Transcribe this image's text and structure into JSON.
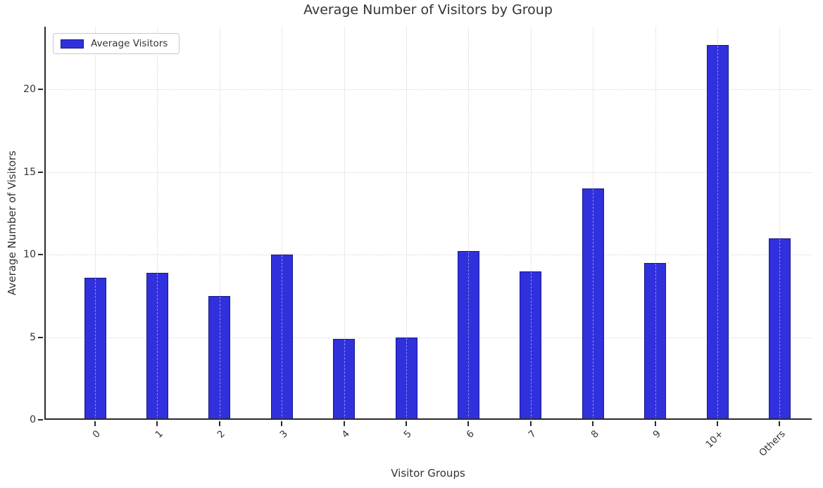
{
  "chart_data": {
    "type": "bar",
    "title": "Average Number of Visitors by Group",
    "xlabel": "Visitor Groups",
    "ylabel": "Average Number of Visitors",
    "legend": {
      "label": "Average Visitors",
      "position": "upper-left"
    },
    "categories": [
      "0",
      "1",
      "2",
      "3",
      "4",
      "5",
      "6",
      "7",
      "8",
      "9",
      "10+",
      "Others"
    ],
    "series": [
      {
        "name": "Average Visitors",
        "values": [
          8.6,
          8.9,
          7.5,
          10.0,
          4.9,
          5.0,
          10.2,
          9.0,
          14.0,
          9.5,
          22.7,
          11.0
        ]
      }
    ],
    "yticks": [
      0,
      5,
      10,
      15,
      20
    ],
    "ylim": [
      0,
      23.8
    ],
    "grid": "dotted, both axes, light gray",
    "colors": {
      "bar_fill": "#3030dd",
      "bar_edge": "#17178a",
      "grid": "#d7d7d7",
      "spine": "#2b2b2b",
      "text": "#333333",
      "background": "#ffffff"
    }
  }
}
